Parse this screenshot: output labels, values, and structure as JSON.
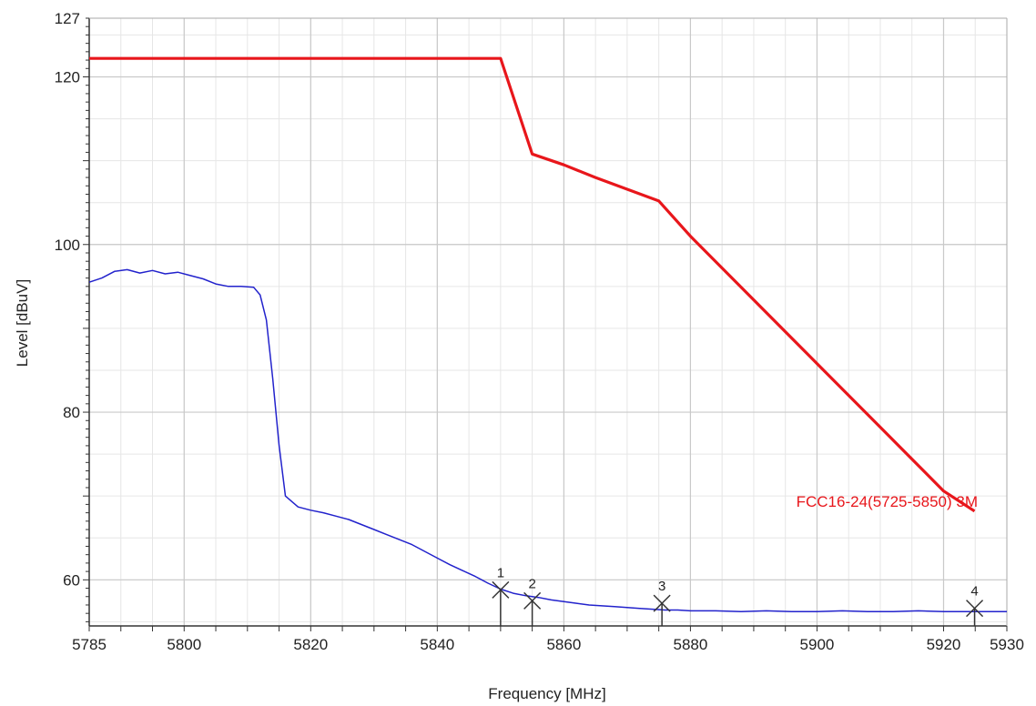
{
  "chart_data": {
    "type": "line",
    "xlabel": "Frequency [MHz]",
    "ylabel": "Level [dBuV]",
    "xlim": [
      5785,
      5930
    ],
    "ylim": [
      54.5,
      127
    ],
    "x_ticks": [
      "5785",
      "5800",
      "5820",
      "5840",
      "5860",
      "5880",
      "5900",
      "5920",
      "5930"
    ],
    "y_ticks": [
      "127",
      "120",
      "100",
      "80",
      "60"
    ],
    "grid": true,
    "colors": {
      "limit": "#e8161b",
      "trace": "#2222cc",
      "grid": "#c9c9c9",
      "marker": "#333333"
    },
    "series": [
      {
        "name": "FCC16-24(5725-5850) 3M",
        "role": "limit",
        "x": [
          5785,
          5850,
          5855,
          5860,
          5865,
          5870,
          5875,
          5880,
          5890,
          5900,
          5910,
          5920,
          5924.9
        ],
        "y": [
          122.2,
          122.2,
          110.8,
          109.5,
          108.0,
          106.6,
          105.2,
          101.0,
          93.4,
          85.8,
          78.2,
          70.6,
          68.2
        ]
      },
      {
        "name": "",
        "role": "trace",
        "x": [
          5785,
          5787,
          5789,
          5791,
          5793,
          5795,
          5797,
          5799,
          5801,
          5803,
          5805,
          5807,
          5809,
          5811,
          5812,
          5813,
          5814,
          5815,
          5816,
          5818,
          5820,
          5822,
          5824,
          5826,
          5828,
          5830,
          5832,
          5834,
          5836,
          5838,
          5840,
          5842,
          5844,
          5846,
          5848,
          5850,
          5852,
          5854,
          5856,
          5858,
          5860,
          5862,
          5864,
          5866,
          5868,
          5870,
          5872,
          5874,
          5876,
          5878,
          5880,
          5884,
          5888,
          5892,
          5896,
          5900,
          5904,
          5908,
          5912,
          5916,
          5920,
          5924,
          5928,
          5930
        ],
        "y": [
          95.5,
          96.0,
          96.8,
          97.0,
          96.6,
          96.9,
          96.5,
          96.7,
          96.3,
          95.9,
          95.3,
          95.0,
          95.0,
          94.9,
          94.0,
          91.0,
          84.0,
          76.0,
          70.0,
          68.7,
          68.3,
          68.0,
          67.6,
          67.2,
          66.6,
          66.0,
          65.4,
          64.8,
          64.2,
          63.4,
          62.6,
          61.8,
          61.1,
          60.4,
          59.6,
          58.9,
          58.4,
          58.1,
          57.9,
          57.6,
          57.4,
          57.2,
          57.0,
          56.9,
          56.8,
          56.7,
          56.6,
          56.5,
          56.4,
          56.4,
          56.3,
          56.3,
          56.2,
          56.3,
          56.2,
          56.2,
          56.3,
          56.2,
          56.2,
          56.3,
          56.2,
          56.2,
          56.2,
          56.2
        ]
      }
    ],
    "markers": [
      {
        "label": "1",
        "x": 5850,
        "y": 58.8
      },
      {
        "label": "2",
        "x": 5855,
        "y": 57.5
      },
      {
        "label": "3",
        "x": 5875.5,
        "y": 57.2
      },
      {
        "label": "4",
        "x": 5924.9,
        "y": 56.6
      }
    ],
    "limit_label": "FCC16-24(5725-5850) 3M"
  }
}
